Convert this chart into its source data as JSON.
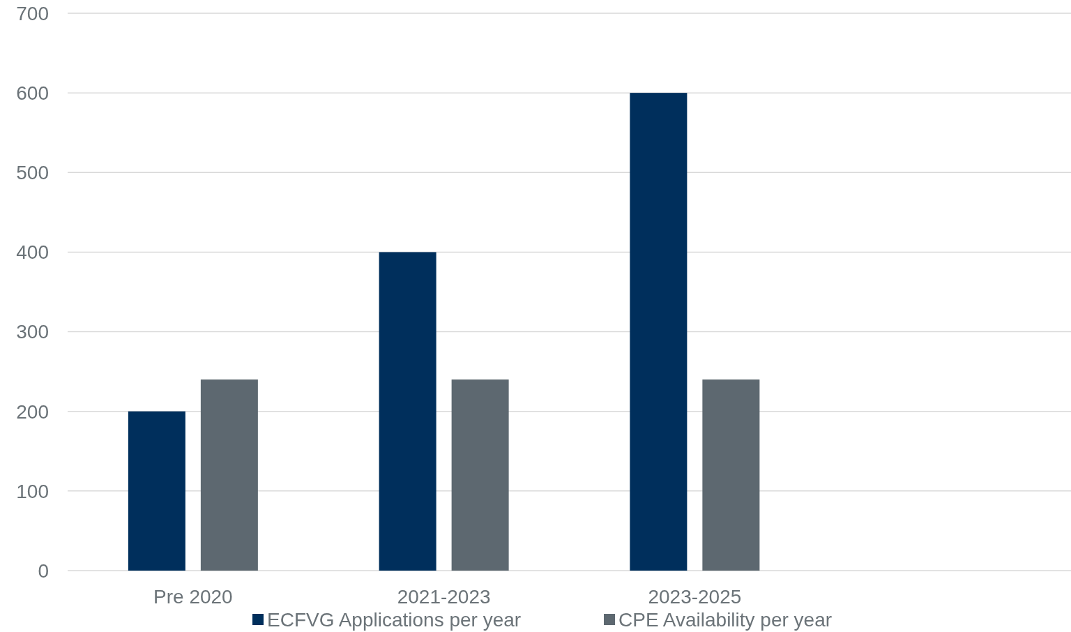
{
  "chart_data": {
    "type": "bar",
    "categories": [
      "Pre 2020",
      "2021-2023",
      "2023-2025",
      null
    ],
    "series": [
      {
        "name": "ECFVG Applications per year",
        "color": "#002f5c",
        "values": [
          200,
          400,
          600,
          null
        ]
      },
      {
        "name": "CPE Availability per year",
        "color": "#5d6870",
        "values": [
          240,
          240,
          240,
          null
        ]
      }
    ],
    "ylim": [
      0,
      700
    ],
    "yticks": [
      0,
      100,
      200,
      300,
      400,
      500,
      600,
      700
    ],
    "grid": "y",
    "legend": "bottom"
  }
}
